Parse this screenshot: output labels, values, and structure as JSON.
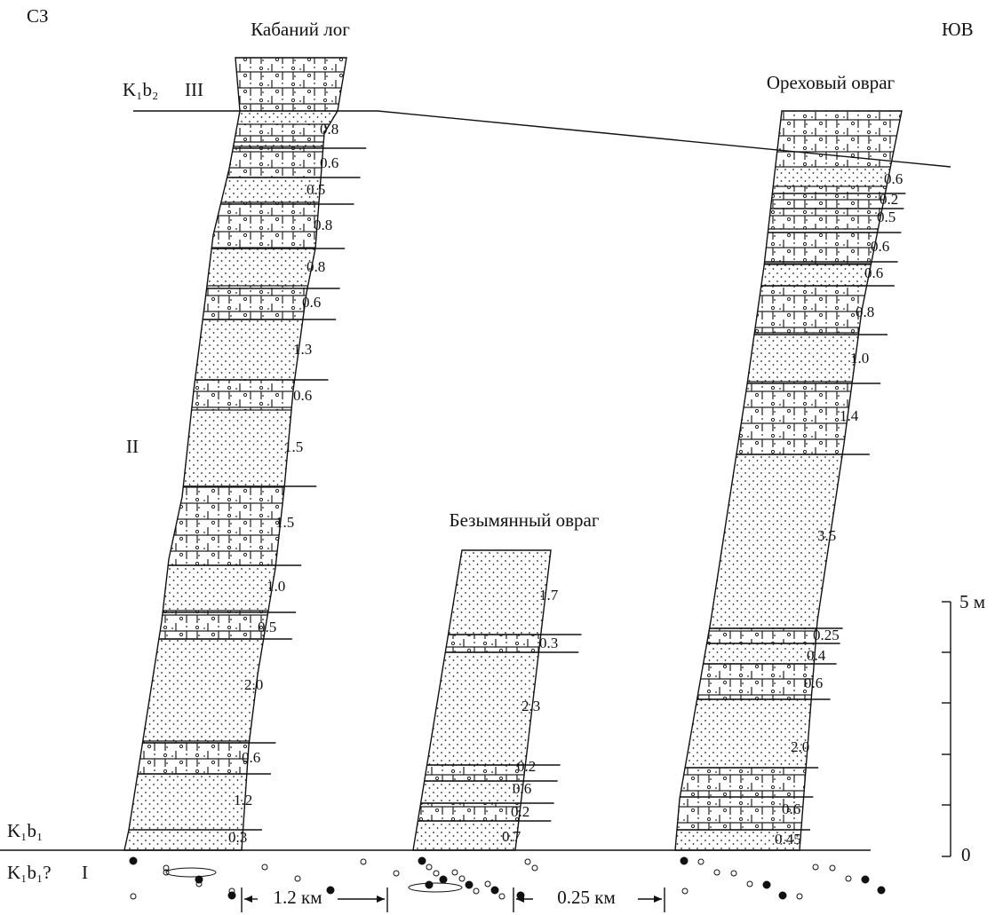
{
  "corners": {
    "northwest": "СЗ",
    "southeast": "ЮВ"
  },
  "columns": [
    {
      "title": "Кабаний лог",
      "layers": [
        "0.8",
        "0.6",
        "0.5",
        "0.8",
        "0.8",
        "0.6",
        "1.3",
        "0.6",
        "1.5",
        "1.5",
        "1.0",
        "0.5",
        "2.0",
        "0.6",
        "1.2",
        "0.3"
      ]
    },
    {
      "title": "Безымянный овраг",
      "layers": [
        "1.7",
        "0.3",
        "2.3",
        "0.2",
        "0.6",
        "0.2",
        "0.7"
      ]
    },
    {
      "title": "Ореховый овраг",
      "layers": [
        "0.6",
        "0.2",
        "0.5",
        "0.6",
        "0.6",
        "0.8",
        "1.0",
        "1.4",
        "3.5",
        "0.25",
        "0.4",
        "0.6",
        "2.0",
        "0.6",
        "0.45"
      ]
    }
  ],
  "stratigraphy": {
    "upper": "K₁b₂",
    "middle": "K₁b₁",
    "lower": "K₁b₁?"
  },
  "units": {
    "upper": "III",
    "middle": "II",
    "lower": "I"
  },
  "distances": [
    "1.2 км",
    "0.25 км"
  ],
  "scale": {
    "top": "5 м",
    "bottom": "0"
  }
}
